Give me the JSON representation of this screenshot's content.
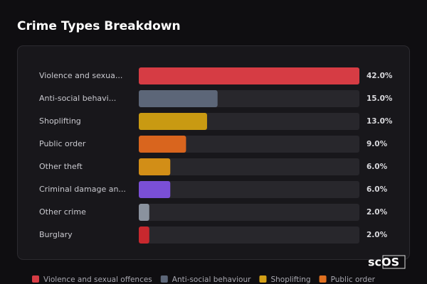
{
  "chart_data": {
    "type": "bar",
    "orientation": "horizontal",
    "title": "Crime Types Breakdown",
    "categories": [
      "Violence and sexua...",
      "Anti-social behavi...",
      "Shoplifting",
      "Public order",
      "Other theft",
      "Criminal damage an...",
      "Other crime",
      "Burglary"
    ],
    "values": [
      42,
      15,
      13,
      9,
      6,
      6,
      2,
      2
    ],
    "value_labels": [
      "42.0%",
      "15.0%",
      "13.0%",
      "9.0%",
      "6.0%",
      "6.0%",
      "2.0%",
      "2.0%"
    ],
    "colors": [
      "#d63c44",
      "#5c6678",
      "#c99a12",
      "#d9651e",
      "#d28e17",
      "#7a4fd6",
      "#8a929e",
      "#c8282e"
    ],
    "legend": [
      {
        "name": "Violence and sexual offences",
        "color": "#d63c44"
      },
      {
        "name": "Anti-social behaviour",
        "color": "#5c6678"
      },
      {
        "name": "Shoplifting",
        "color": "#d4a017"
      },
      {
        "name": "Public order",
        "color": "#e07020"
      }
    ],
    "watermark": "scOS"
  }
}
